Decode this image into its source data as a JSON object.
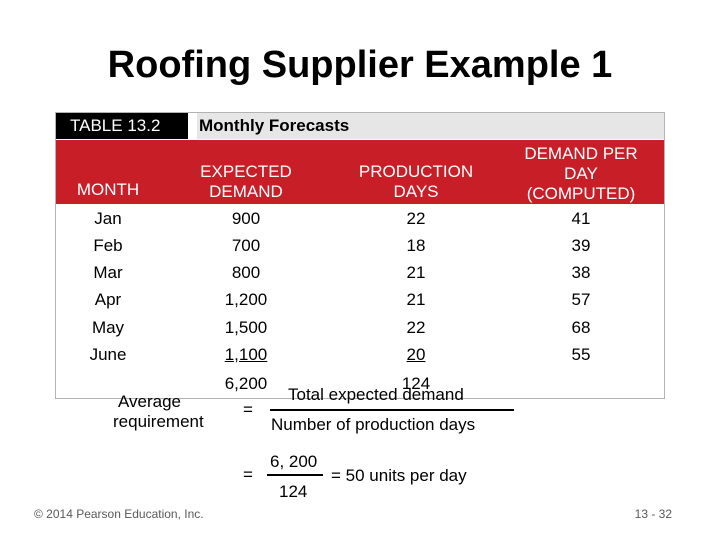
{
  "slide": {
    "title": "Roofing Supplier Example 1",
    "footer_left": "© 2014 Pearson Education, Inc.",
    "footer_right": "13 - 32"
  },
  "table": {
    "label": "TABLE 13.2",
    "caption": "Monthly Forecasts",
    "headers": {
      "month": "MONTH",
      "demand": [
        "EXPECTED",
        "DEMAND"
      ],
      "days": [
        "PRODUCTION",
        "DAYS"
      ],
      "per_day": [
        "DEMAND PER",
        "DAY",
        "(COMPUTED)"
      ]
    },
    "rows": [
      {
        "month": "Jan",
        "demand": "900",
        "days": "22",
        "per_day": "41"
      },
      {
        "month": "Feb",
        "demand": "700",
        "days": "18",
        "per_day": "39"
      },
      {
        "month": "Mar",
        "demand": "800",
        "days": "21",
        "per_day": "38"
      },
      {
        "month": "Apr",
        "demand": "1,200",
        "days": "21",
        "per_day": "57"
      },
      {
        "month": "May",
        "demand": "1,500",
        "days": "22",
        "per_day": "68"
      },
      {
        "month": "June",
        "demand": "1,100",
        "days": "20",
        "per_day": "55"
      }
    ],
    "totals": {
      "demand": "6,200",
      "days": "124"
    }
  },
  "formula": {
    "average_label": "Average",
    "requirement_label": "requirement",
    "equals": "=",
    "numerator": "Total expected demand",
    "denominator": "Number of production days",
    "example_numerator": "6, 200",
    "example_denominator": "124",
    "result": "= 50 units per day"
  }
}
